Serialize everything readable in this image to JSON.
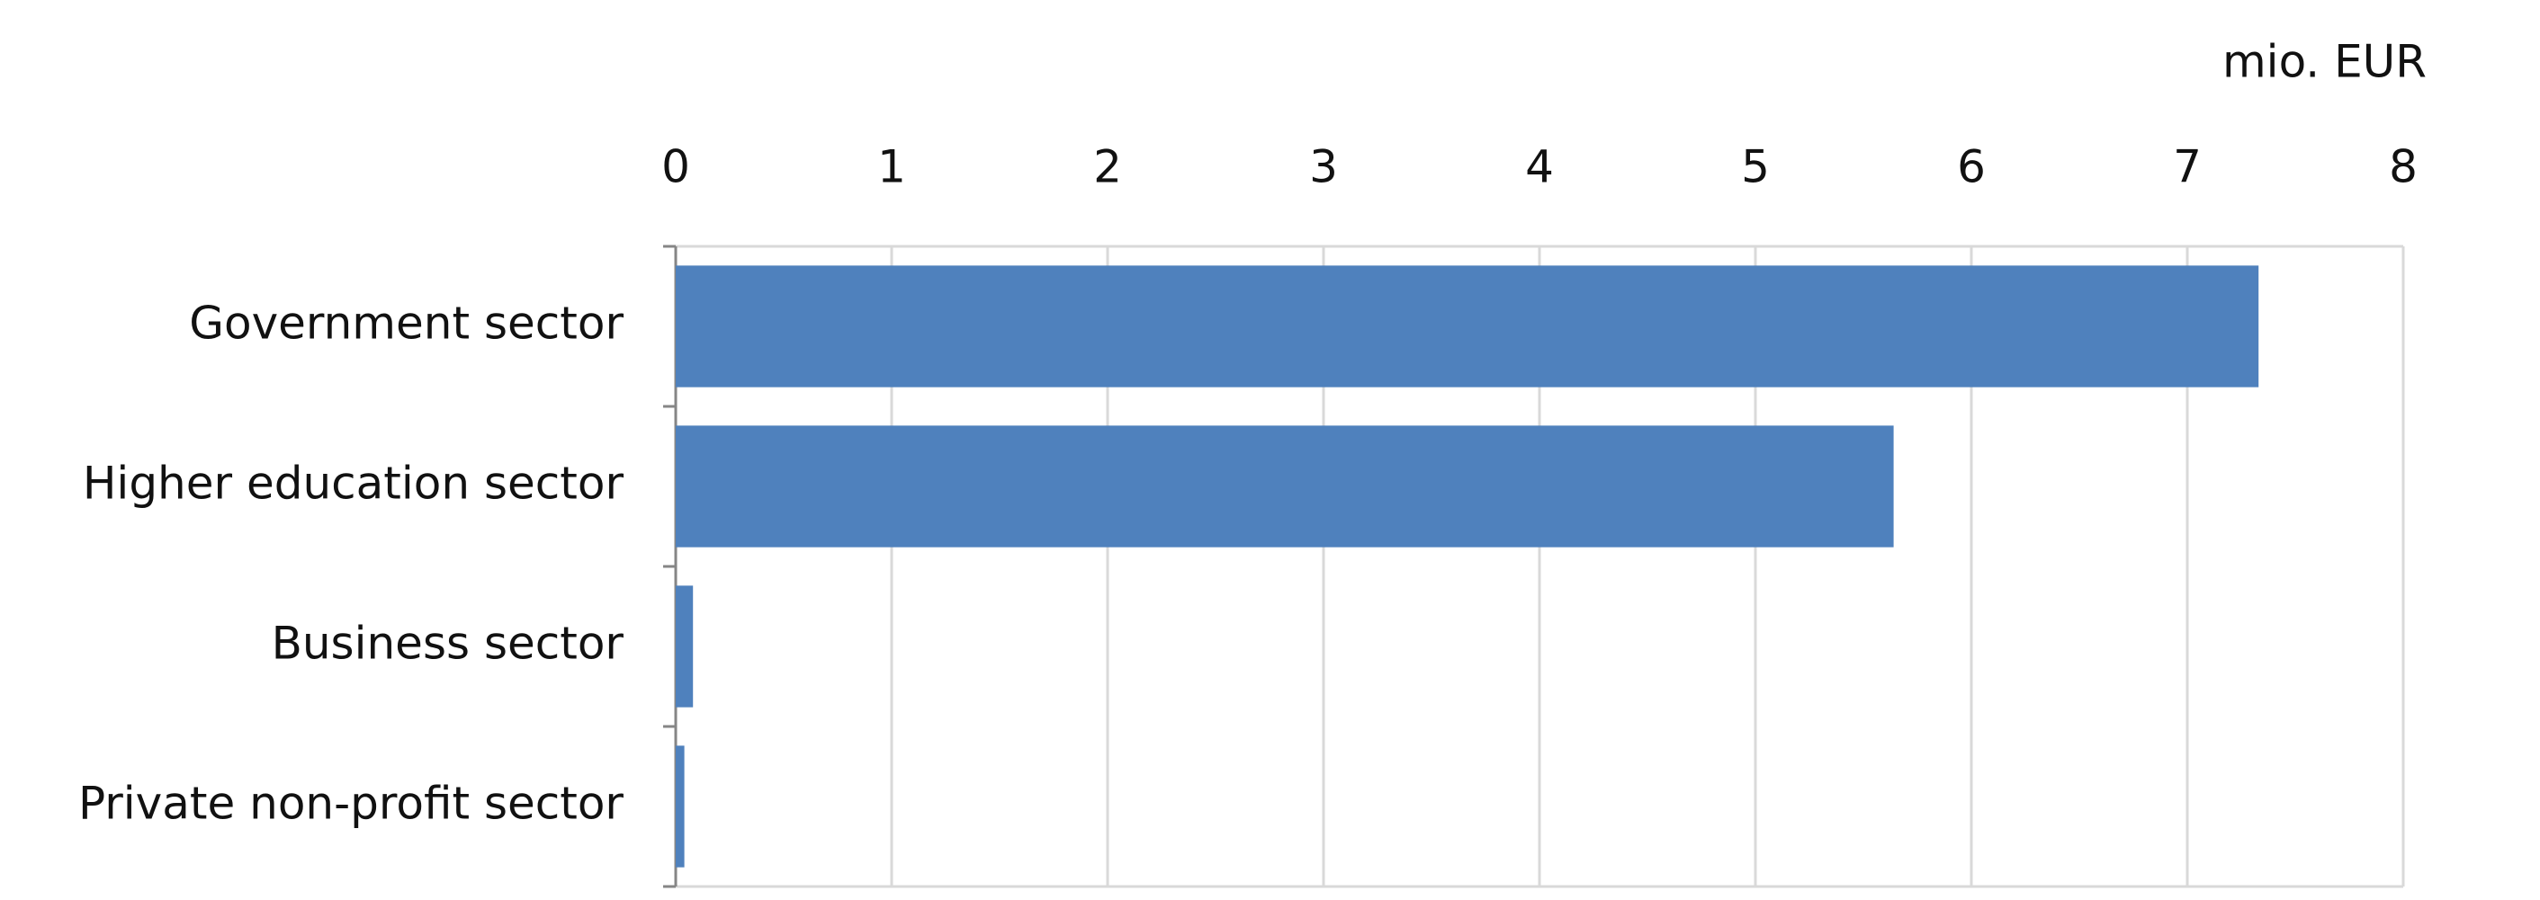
{
  "chart_data": {
    "type": "bar",
    "orientation": "horizontal",
    "x_label": "mio. EUR",
    "categories": [
      "Government sector",
      "Higher education sector",
      "Business sector",
      "Private non-profit sector"
    ],
    "values": [
      7.33,
      5.64,
      0.08,
      0.04
    ],
    "color": "#4f81bd",
    "xlim": [
      0,
      8
    ],
    "xticks": [
      0,
      1,
      2,
      3,
      4,
      5,
      6,
      7,
      8
    ],
    "grid": true
  }
}
